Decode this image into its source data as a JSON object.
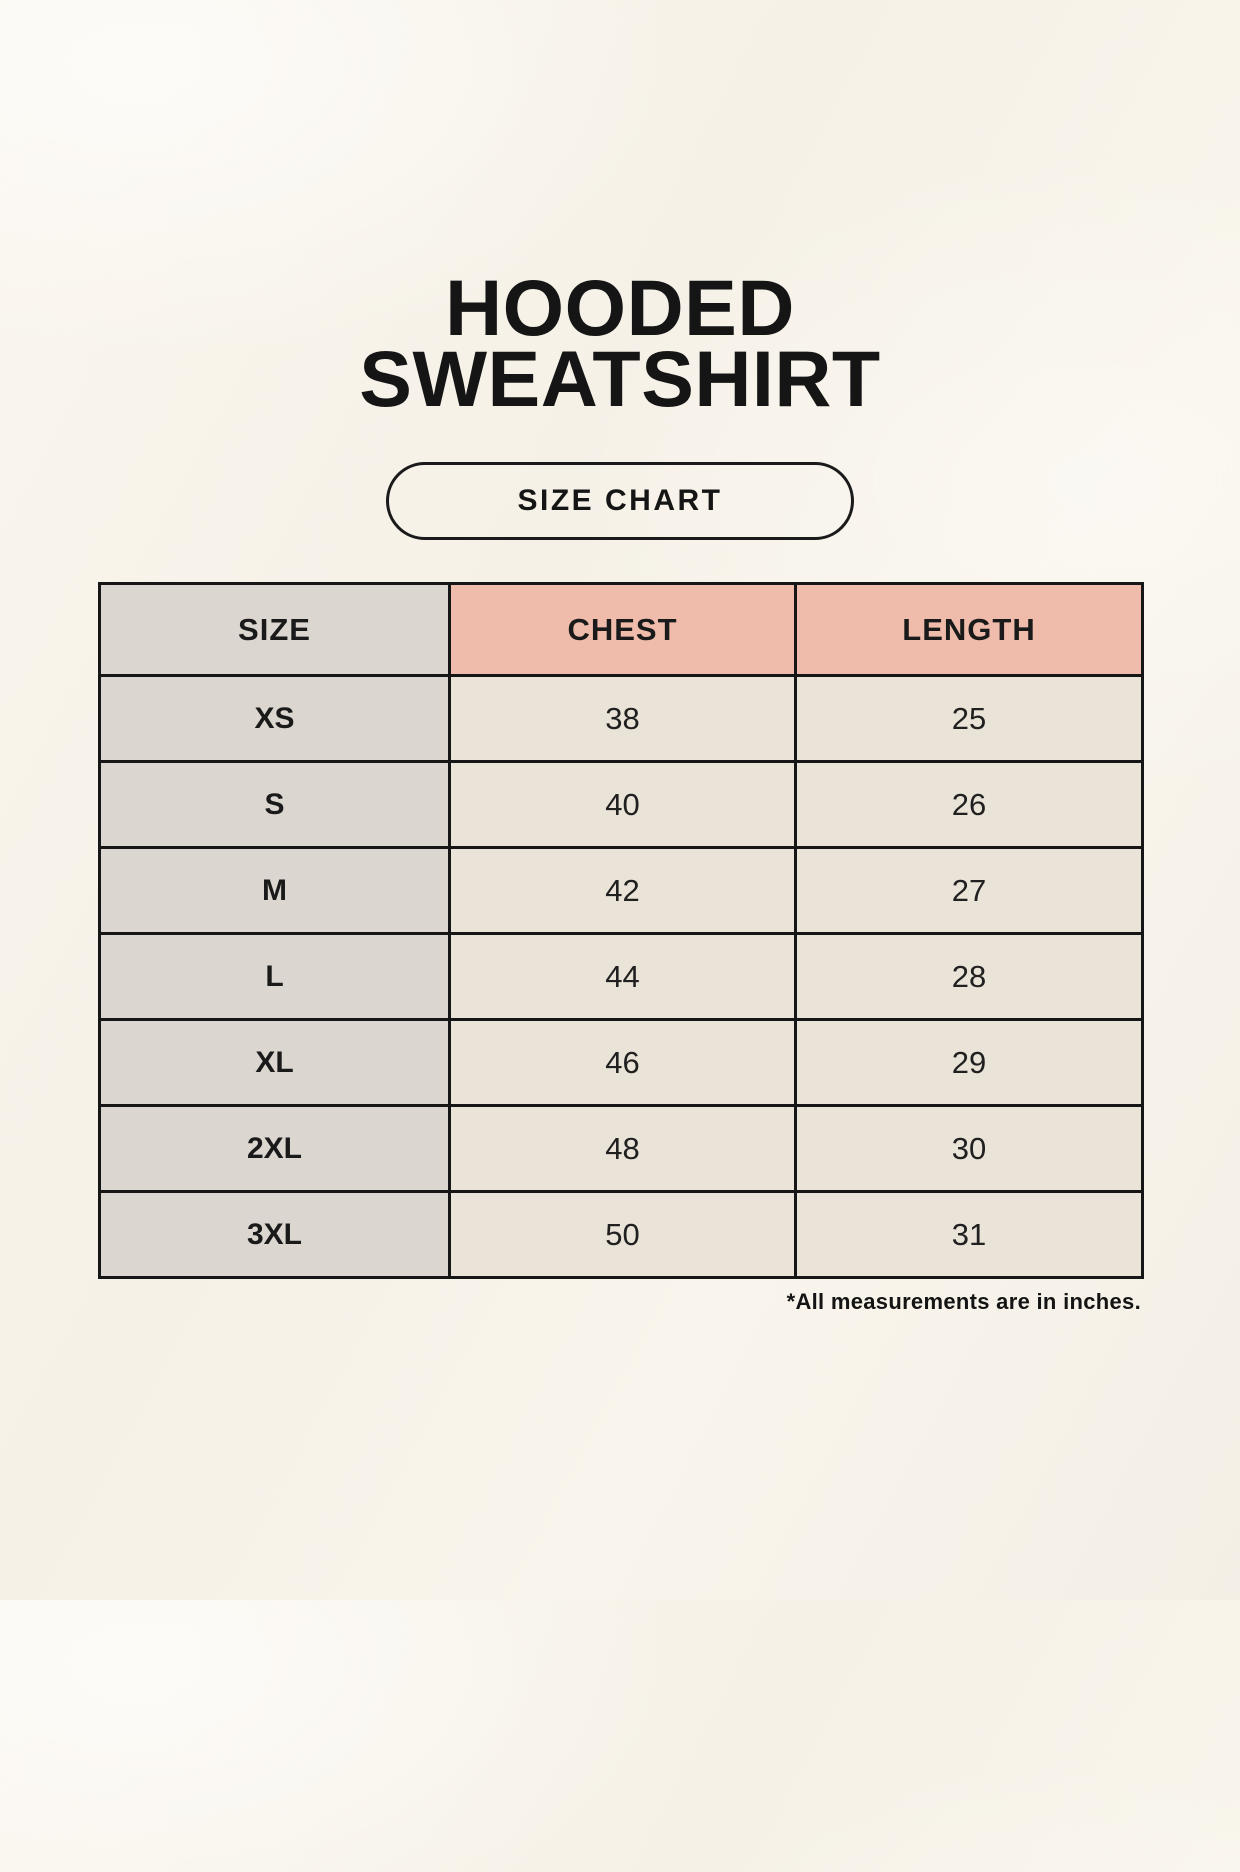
{
  "page": {
    "title_lines": [
      "HOODED",
      "SWEATSHIRT"
    ],
    "button_label": "SIZE CHART",
    "footnote": "*All measurements are in inches."
  },
  "colors": {
    "background": "#f8f4ec",
    "header_salmon": "#efbcab",
    "size_column_taupe": "#dcd6d0",
    "cell_cream": "#e9e3d8",
    "border": "#161616",
    "text": "#1c1c1c"
  },
  "chart_data": {
    "type": "table",
    "title": "HOODED SWEATSHIRT",
    "subtitle": "SIZE CHART",
    "columns": [
      "SIZE",
      "CHEST",
      "LENGTH"
    ],
    "rows": [
      {
        "size": "XS",
        "chest": "38",
        "length": "25"
      },
      {
        "size": "S",
        "chest": "40",
        "length": "26"
      },
      {
        "size": "M",
        "chest": "42",
        "length": "27"
      },
      {
        "size": "L",
        "chest": "44",
        "length": "28"
      },
      {
        "size": "XL",
        "chest": "46",
        "length": "29"
      },
      {
        "size": "2XL",
        "chest": "48",
        "length": "30"
      },
      {
        "size": "3XL",
        "chest": "50",
        "length": "31"
      }
    ],
    "units": "inches",
    "note": "*All measurements are in inches."
  }
}
